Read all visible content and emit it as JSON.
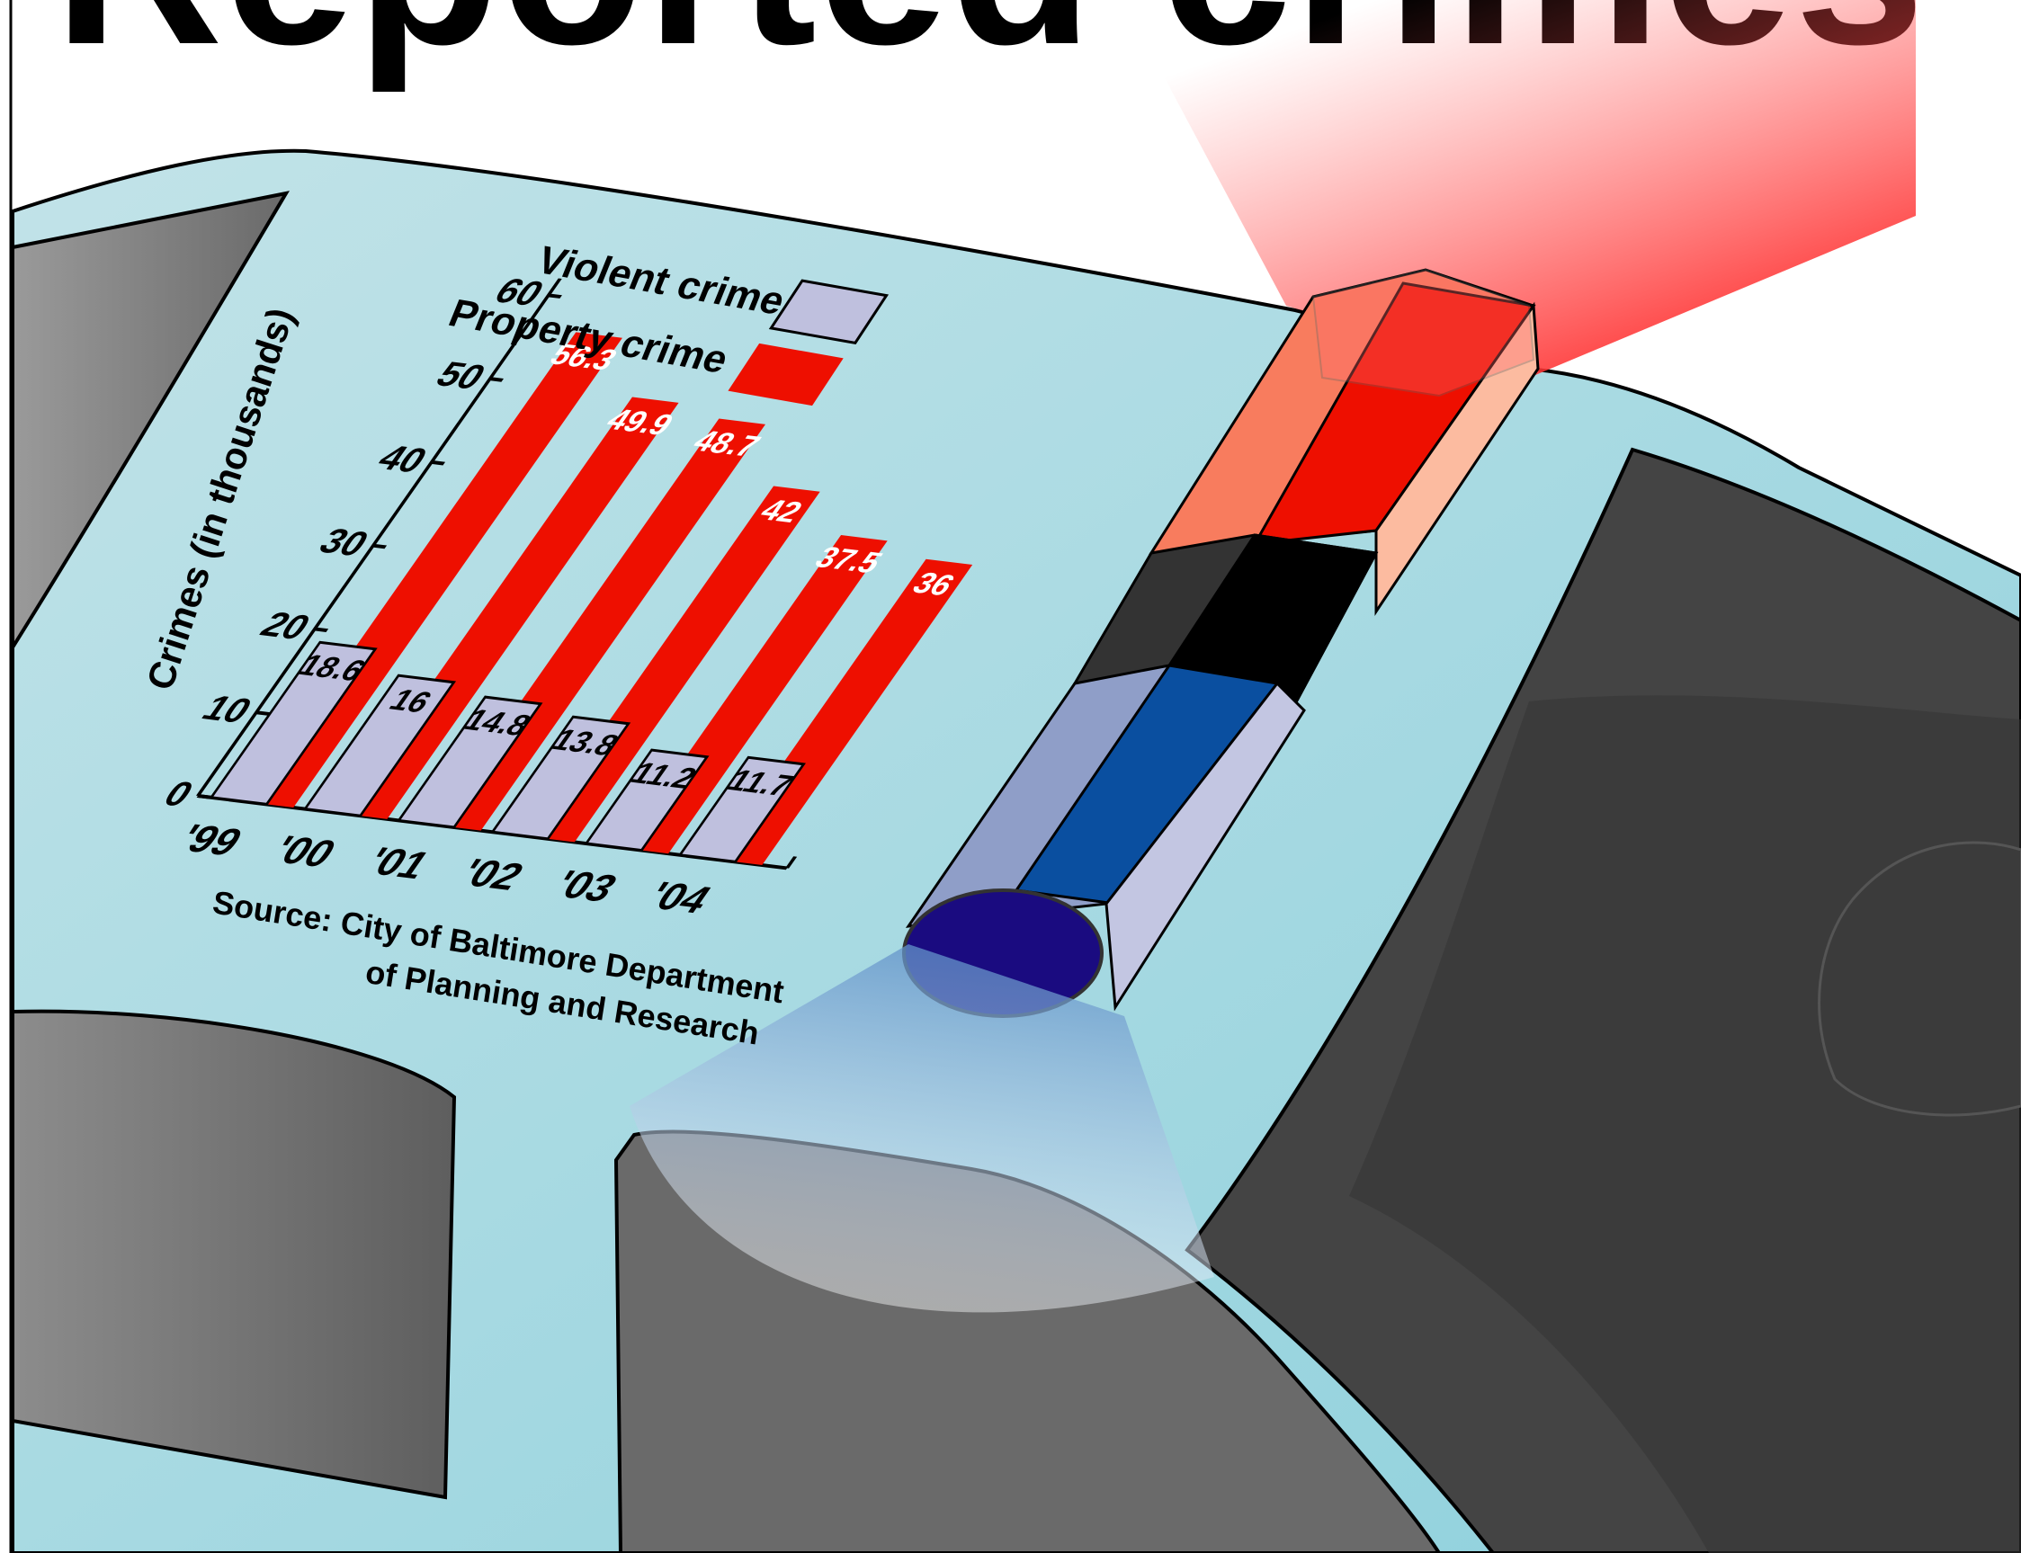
{
  "title": "Reported crimes",
  "colors": {
    "car_body": "#a9dbe3",
    "violent": "#bfc0de",
    "property": "#ee0f00",
    "window": "#5a5a5a",
    "light_red": "#ee0f00",
    "light_blue": "#0a4fa0"
  },
  "chart_data": {
    "type": "bar",
    "categories": [
      "'99",
      "'00",
      "'01",
      "'02",
      "'03",
      "'04"
    ],
    "series": [
      {
        "name": "Violent crime",
        "values": [
          18.6,
          16,
          14.8,
          13.8,
          11.2,
          11.7
        ]
      },
      {
        "name": "Property crime",
        "values": [
          56.3,
          49.9,
          48.7,
          42,
          37.5,
          36
        ]
      }
    ],
    "value_labels": {
      "violent": [
        "18.6",
        "16",
        "14.8",
        "13.8",
        "11.2",
        "11.7"
      ],
      "property": [
        "56.3",
        "49.9",
        "48.7",
        "42",
        "37.5",
        "36"
      ]
    },
    "y_ticks": [
      "0",
      "10",
      "20",
      "30",
      "40",
      "50",
      "60"
    ],
    "y_tick_values": [
      0,
      10,
      20,
      30,
      40,
      50,
      60
    ],
    "ylim": [
      0,
      60
    ],
    "ylabel": "Crimes (in thousands)",
    "xlabel": "",
    "legend": [
      "Violent crime",
      "Property crime"
    ],
    "legend_position": "top-right",
    "grid": false,
    "source_line1": "Source: City of Baltimore Department",
    "source_line2": "of Planning and Research"
  }
}
